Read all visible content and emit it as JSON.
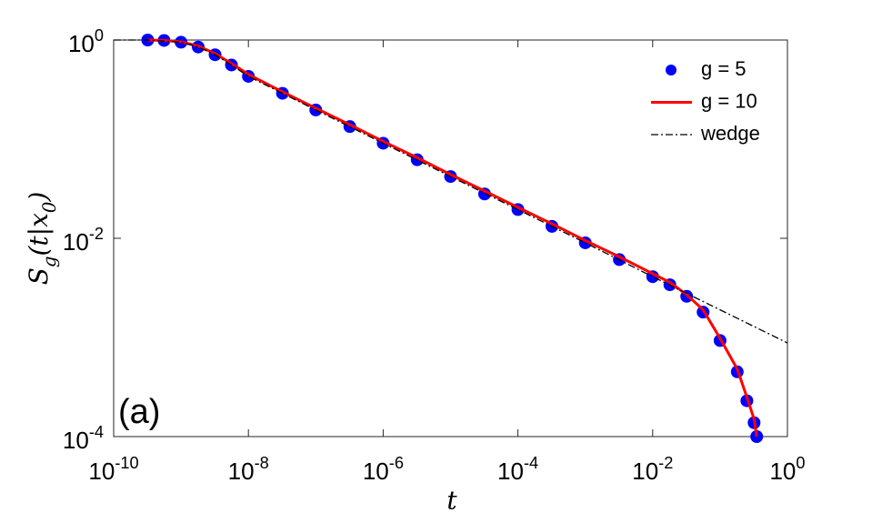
{
  "chart_data": {
    "type": "line",
    "xlabel": "t",
    "ylabel": "S_g(t|x_0)",
    "annotation": "(a)",
    "xscale": "log",
    "yscale": "log",
    "xlim": [
      1e-10,
      1
    ],
    "ylim": [
      0.0001,
      1
    ],
    "xticks": [
      {
        "value": 1e-10,
        "label": "10^-10"
      },
      {
        "value": 1e-08,
        "label": "10^-8"
      },
      {
        "value": 1e-06,
        "label": "10^-6"
      },
      {
        "value": 0.0001,
        "label": "10^-4"
      },
      {
        "value": 0.01,
        "label": "10^-2"
      },
      {
        "value": 1,
        "label": "10^0"
      }
    ],
    "yticks": [
      {
        "value": 0.0001,
        "label": "10^-4"
      },
      {
        "value": 0.01,
        "label": "10^-2"
      },
      {
        "value": 1,
        "label": "10^0"
      }
    ],
    "legend": "upper right",
    "series": [
      {
        "name": "g = 5",
        "color": "#0000ff",
        "marker": "o",
        "linestyle": "none",
        "x": [
          3.2e-10,
          5.6e-10,
          1e-09,
          1.8e-09,
          3.2e-09,
          5.6e-09,
          1e-08,
          3.2e-08,
          1e-07,
          3.2e-07,
          1e-06,
          3.2e-06,
          1e-05,
          3.2e-05,
          0.0001,
          0.00032,
          0.001,
          0.0032,
          0.01,
          0.018,
          0.032,
          0.056,
          0.1,
          0.18,
          0.25,
          0.32,
          0.35
        ],
        "values": [
          1.0,
          0.99,
          0.95,
          0.85,
          0.71,
          0.56,
          0.43,
          0.29,
          0.197,
          0.134,
          0.091,
          0.062,
          0.042,
          0.028,
          0.0195,
          0.0132,
          0.009,
          0.0061,
          0.0041,
          0.0034,
          0.0026,
          0.0018,
          0.00093,
          0.00045,
          0.00023,
          0.000138,
          0.0001
        ]
      },
      {
        "name": "g = 10",
        "color": "#ff0000",
        "marker": "none",
        "linestyle": "solid",
        "x": [
          3.2e-10,
          5.6e-10,
          1e-09,
          1.8e-09,
          3.2e-09,
          5.6e-09,
          1e-08,
          3.2e-08,
          1e-07,
          3.2e-07,
          1e-06,
          3.2e-06,
          1e-05,
          3.2e-05,
          0.0001,
          0.00032,
          0.001,
          0.0032,
          0.01,
          0.018,
          0.032,
          0.056,
          0.1,
          0.18,
          0.25,
          0.32,
          0.35
        ],
        "values": [
          1.0,
          0.99,
          0.96,
          0.87,
          0.73,
          0.58,
          0.45,
          0.3,
          0.205,
          0.14,
          0.095,
          0.065,
          0.044,
          0.03,
          0.0205,
          0.014,
          0.0095,
          0.0065,
          0.0044,
          0.0036,
          0.0027,
          0.0019,
          0.00098,
          0.00048,
          0.00025,
          0.00015,
          0.0001
        ]
      },
      {
        "name": "wedge",
        "color": "#000000",
        "marker": "none",
        "linestyle": "dashdot",
        "x": [
          1e-10,
          3.2e-10,
          1e-09,
          1.8e-09,
          3.2e-09,
          5.6e-09,
          1e-08,
          1e-07,
          1e-06,
          1e-05,
          0.0001,
          0.001,
          0.01,
          0.1,
          1
        ],
        "values": [
          1.0,
          1.0,
          0.95,
          0.85,
          0.71,
          0.56,
          0.43,
          0.197,
          0.091,
          0.042,
          0.0195,
          0.009,
          0.0041,
          0.0019,
          0.00088
        ]
      }
    ]
  }
}
